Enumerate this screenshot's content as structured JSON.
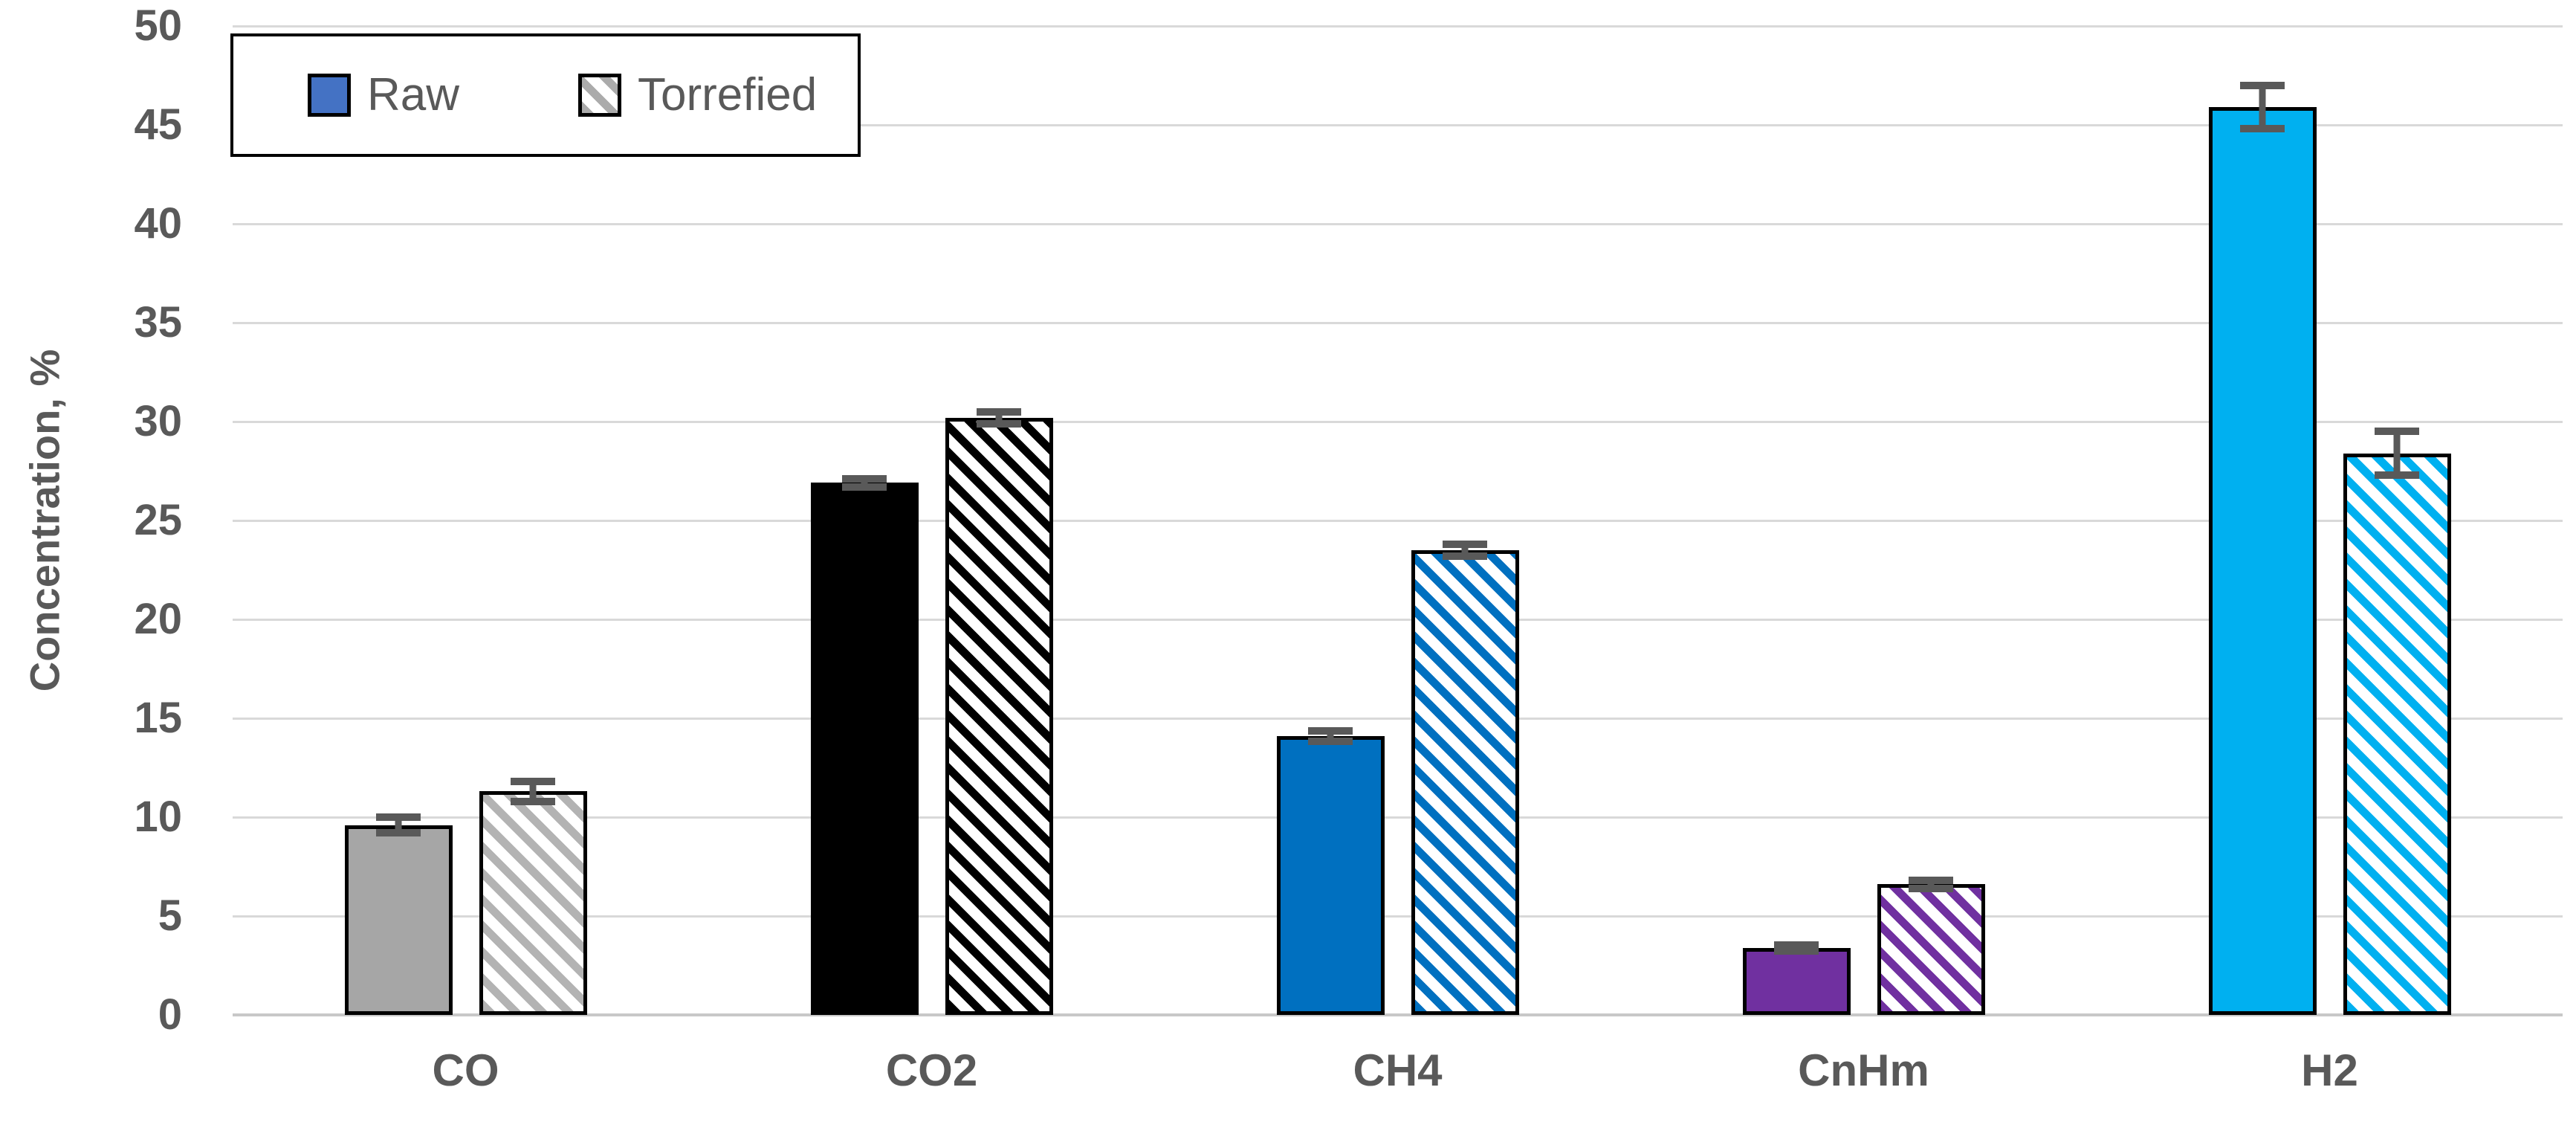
{
  "chart_data": {
    "type": "bar",
    "title": "",
    "xlabel": "",
    "ylabel": "Concentration, %",
    "ylim": [
      0,
      50
    ],
    "ytick_step": 5,
    "ytick_labels": [
      "0",
      "5",
      "10",
      "15",
      "20",
      "25",
      "30",
      "35",
      "40",
      "45",
      "50"
    ],
    "grid": "horizontal",
    "legend_position": "inside-top-left",
    "categories": [
      "CO",
      "CO2",
      "CH4",
      "CnHm",
      "H2"
    ],
    "series": [
      {
        "name": "Raw",
        "style": "solid",
        "values": [
          9.6,
          26.9,
          14.1,
          3.4,
          45.9
        ],
        "errors": [
          0.4,
          0.2,
          0.25,
          0.15,
          1.1
        ],
        "colors": [
          "#a6a6a6",
          "#000000",
          "#0070c0",
          "#7030a0",
          "#00b0f0"
        ]
      },
      {
        "name": "Torrefied",
        "style": "hatched",
        "values": [
          11.3,
          30.2,
          23.5,
          6.6,
          28.4
        ],
        "errors": [
          0.5,
          0.3,
          0.3,
          0.2,
          1.1
        ],
        "colors": [
          "#b3b3b3",
          "#000000",
          "#0070c0",
          "#7030a0",
          "#00b0f0"
        ]
      }
    ]
  },
  "legend": {
    "raw_swatch_color": "#4472c4",
    "torrefied_hatch_color": "#ababab"
  },
  "style_colors": {
    "gridline": "#d9d9d9",
    "axis_line": "#c8c8c8",
    "error_bar": "#595959",
    "text": "#595959",
    "bar_border": "#000000"
  }
}
